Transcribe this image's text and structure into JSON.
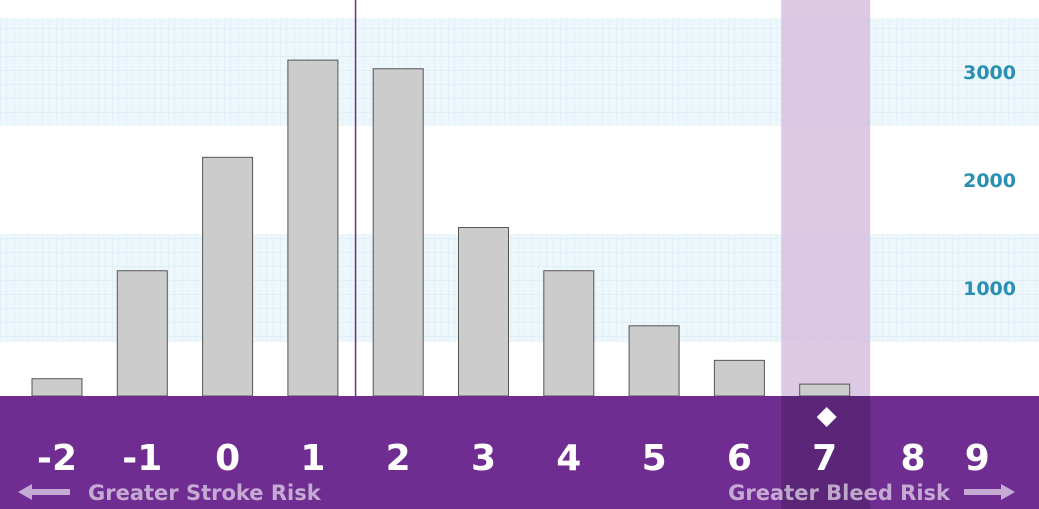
{
  "chart_data": {
    "type": "bar",
    "title": "",
    "xlabel": "",
    "ylabel": "",
    "categories": [
      "-2",
      "-1",
      "0",
      "1",
      "2",
      "3",
      "4",
      "5",
      "6",
      "7",
      "8",
      "9"
    ],
    "values": [
      160,
      1160,
      2210,
      3110,
      3030,
      1560,
      1160,
      650,
      330,
      110,
      null,
      null
    ],
    "ylim": [
      0,
      3500
    ],
    "yticks": [
      "1000",
      "2000",
      "3000"
    ],
    "highlighted_category": "7",
    "divider_after_category": "1",
    "risk_labels": {
      "left": "Greater Stroke Risk",
      "right": "Greater Bleed Risk"
    },
    "grid_bands": [
      [
        500,
        1500
      ],
      [
        2500,
        3500
      ]
    ],
    "legend": "none"
  },
  "colors": {
    "axis_bar": "#6f2c91",
    "highlight": "#d6bfdf",
    "highlight_axis": "#5b2678",
    "bar_fill": "#cccccc",
    "bar_stroke": "#555555",
    "ytick": "#2a8fb3",
    "band": "#eaf6fa",
    "divider": "#6f2c91"
  },
  "icons": {
    "marker": "diamond-icon",
    "left_arrow": "arrow-left-icon",
    "right_arrow": "arrow-right-icon"
  }
}
